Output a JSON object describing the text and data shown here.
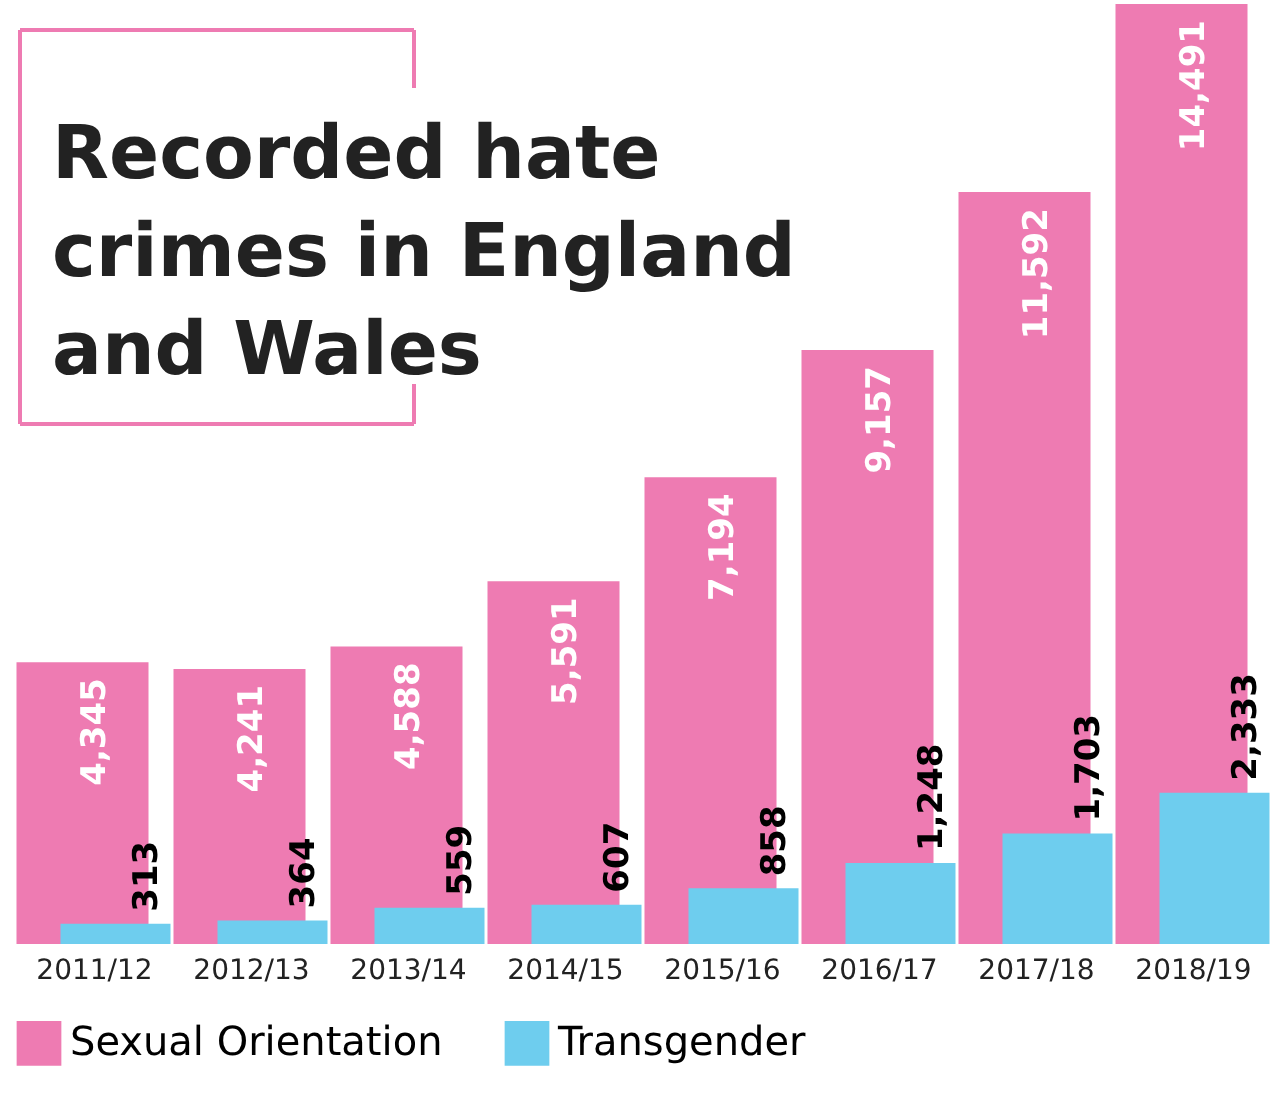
{
  "chart_data": {
    "type": "bar",
    "title": "Recorded hate crimes in England and Wales",
    "categories": [
      "2011/12",
      "2012/13",
      "2013/14",
      "2014/15",
      "2015/16",
      "2016/17",
      "2017/18",
      "2018/19"
    ],
    "series": [
      {
        "name": "Sexual Orientation",
        "color": "#ee7bb2",
        "values": [
          4345,
          4241,
          4588,
          5591,
          7194,
          9157,
          11592,
          14491
        ],
        "value_labels": [
          "4,345",
          "4,241",
          "4,588",
          "5,591",
          "7,194",
          "9,157",
          "11,592",
          "14,491"
        ]
      },
      {
        "name": "Transgender",
        "color": "#6ecdee",
        "values": [
          313,
          364,
          559,
          607,
          858,
          1248,
          1703,
          2333
        ],
        "value_labels": [
          "313",
          "364",
          "559",
          "607",
          "858",
          "1,248",
          "1,703",
          "2,333"
        ]
      }
    ],
    "legend": "bottom",
    "grid": false
  }
}
